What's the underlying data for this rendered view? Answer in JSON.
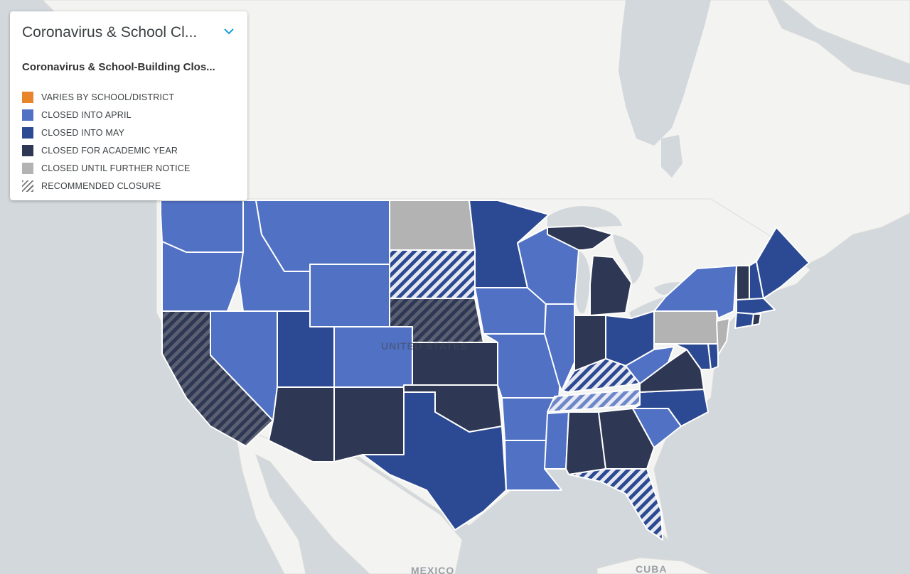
{
  "legend": {
    "title": "Coronavirus & School Cl...",
    "subtitle": "Coronavirus & School-Building Clos...",
    "items": [
      {
        "label": "VARIES BY SCHOOL/DISTRICT",
        "color": "#e8852c",
        "pattern": false
      },
      {
        "label": "CLOSED INTO APRIL",
        "color": "#5071c4",
        "pattern": false
      },
      {
        "label": "CLOSED INTO MAY",
        "color": "#2c4a93",
        "pattern": false
      },
      {
        "label": "CLOSED FOR ACADEMIC YEAR",
        "color": "#2e3753",
        "pattern": false
      },
      {
        "label": "CLOSED UNTIL FURTHER NOTICE",
        "color": "#b3b3b3",
        "pattern": false
      },
      {
        "label": "RECOMMENDED CLOSURE",
        "color": "#777777",
        "pattern": true
      }
    ]
  },
  "map_labels": {
    "country": "UNITED STATES",
    "mexico": "MEXICO",
    "cuba": "CUBA"
  },
  "colors": {
    "april": "#5071c4",
    "may": "#2c4a93",
    "year": "#2e3753",
    "notice": "#b3b3b3",
    "water": "#d3d8dc",
    "land": "#f3f3f1"
  },
  "states": {
    "WA": "april",
    "OR": "april",
    "ID": "april",
    "MT": "april",
    "WY": "april",
    "NV": "april",
    "CO": "april",
    "IA": "april",
    "MO": "april",
    "WI": "april",
    "IL": "april",
    "AR": "april",
    "MS": "april",
    "LA": "april",
    "NY": "april",
    "SC": "april",
    "WV": "april",
    "UT": "may",
    "TX": "may",
    "MN": "may",
    "OH": "may",
    "NC": "may",
    "ME": "may",
    "NH": "may",
    "MA": "may",
    "CT": "may",
    "MD": "may",
    "DE": "may",
    "AZ": "year",
    "NM": "year",
    "KS": "year",
    "OK": "year",
    "MI": "year",
    "IN": "year",
    "VA": "year",
    "AL": "year",
    "GA": "year",
    "VT": "year",
    "RI": "year",
    "ND": "notice",
    "PA": "notice",
    "NJ": "notice",
    "CA": "rec-year",
    "SD": "rec-may",
    "NE": "rec-year",
    "KY": "rec-may",
    "TN": "rec-april",
    "FL": "rec-may"
  }
}
